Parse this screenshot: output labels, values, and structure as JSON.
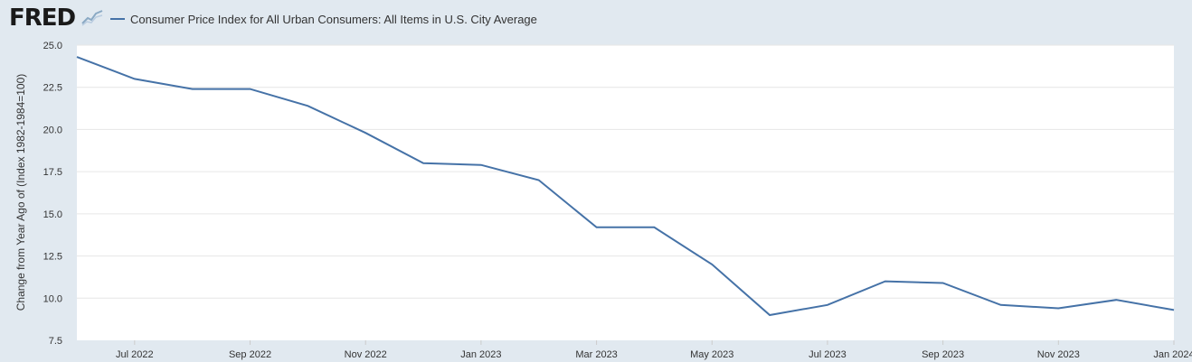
{
  "brand": {
    "logo_text": "FRED"
  },
  "colors": {
    "series": "#4572a7",
    "background": "#e1e9f0",
    "plot_bg": "#ffffff",
    "grid": "#e6e6e6"
  },
  "chart_data": {
    "type": "line",
    "title": "",
    "ylabel": "Change from Year Ago of (Index 1982-1984=100)",
    "xlabel": "",
    "ylim": [
      7.5,
      25.0
    ],
    "xlim": [
      "2022-06",
      "2024-01"
    ],
    "yticks": [
      "7.5",
      "10.0",
      "12.5",
      "15.0",
      "17.5",
      "20.0",
      "22.5",
      "25.0"
    ],
    "xticks": [
      "Jul 2022",
      "Sep 2022",
      "Nov 2022",
      "Jan 2023",
      "Mar 2023",
      "May 2023",
      "Jul 2023",
      "Sep 2023",
      "Nov 2023",
      "Jan 2024"
    ],
    "series": [
      {
        "name": "Consumer Price Index for All Urban Consumers: All Items in U.S. City Average",
        "x": [
          "2022-06",
          "2022-07",
          "2022-08",
          "2022-09",
          "2022-10",
          "2022-11",
          "2022-12",
          "2023-01",
          "2023-02",
          "2023-03",
          "2023-04",
          "2023-05",
          "2023-06",
          "2023-07",
          "2023-08",
          "2023-09",
          "2023-10",
          "2023-11",
          "2023-12",
          "2024-01"
        ],
        "values": [
          24.3,
          23.0,
          22.4,
          22.4,
          21.4,
          19.8,
          18.0,
          17.9,
          17.0,
          14.2,
          14.2,
          12.0,
          9.0,
          9.6,
          11.0,
          10.9,
          9.6,
          9.4,
          9.9,
          9.3
        ]
      }
    ]
  }
}
